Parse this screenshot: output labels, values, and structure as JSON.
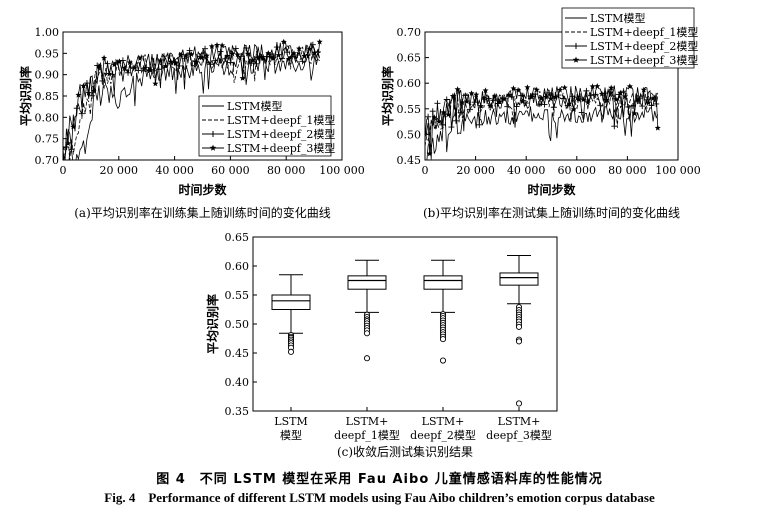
{
  "figure": {
    "caption_cn": "图 4　不同 LSTM 模型在采用 Fau Aibo 儿童情感语料库的性能情况",
    "caption_en_label": "Fig. 4",
    "caption_en_text": "Performance of different LSTM models using Fau Aibo children’s emotion corpus database"
  },
  "chart_data": [
    {
      "id": "a",
      "type": "line",
      "caption": "(a)平均识别率在训练集上随训练时间的变化曲线",
      "xlabel": "时间步数",
      "ylabel": "平均识别率",
      "xlim": [
        0,
        100000
      ],
      "ylim": [
        0.7,
        1.0
      ],
      "xticks": [
        0,
        20000,
        40000,
        60000,
        80000,
        100000
      ],
      "xtick_labels": [
        "0",
        "20 000",
        "40 000",
        "60 000",
        "80 000",
        "100 000"
      ],
      "yticks": [
        0.7,
        0.75,
        0.8,
        0.85,
        0.9,
        0.95,
        1.0
      ],
      "ytick_labels": [
        "0.70",
        "0.75",
        "0.80",
        "0.85",
        "0.90",
        "0.95",
        "1.00"
      ],
      "legend_position": "lower-right",
      "series": [
        {
          "name": "LSTM模型",
          "style": "solid",
          "marker": "none",
          "x": [
            0,
            3000,
            6000,
            9000,
            12000,
            16000,
            20000,
            25000,
            30000,
            40000,
            50000,
            60000,
            70000,
            80000,
            92000
          ],
          "y": [
            0.7,
            0.7,
            0.72,
            0.8,
            0.85,
            0.88,
            0.84,
            0.88,
            0.9,
            0.91,
            0.92,
            0.92,
            0.93,
            0.93,
            0.93
          ]
        },
        {
          "name": "LSTM+deepf_1模型",
          "style": "dashed",
          "marker": "none",
          "x": [
            0,
            3000,
            6000,
            9000,
            12000,
            16000,
            20000,
            25000,
            30000,
            40000,
            50000,
            60000,
            70000,
            80000,
            92000
          ],
          "y": [
            0.7,
            0.73,
            0.79,
            0.85,
            0.88,
            0.9,
            0.91,
            0.92,
            0.93,
            0.93,
            0.94,
            0.94,
            0.94,
            0.95,
            0.95
          ]
        },
        {
          "name": "LSTM+deepf_2模型",
          "style": "solid",
          "marker": "plus",
          "x": [
            0,
            3000,
            6000,
            9000,
            12000,
            16000,
            20000,
            25000,
            30000,
            40000,
            50000,
            60000,
            70000,
            80000,
            92000
          ],
          "y": [
            0.73,
            0.77,
            0.83,
            0.87,
            0.89,
            0.91,
            0.92,
            0.92,
            0.93,
            0.94,
            0.94,
            0.95,
            0.95,
            0.95,
            0.95
          ]
        },
        {
          "name": "LSTM+deepf_3模型",
          "style": "solid",
          "marker": "star",
          "x": [
            0,
            3000,
            6000,
            9000,
            12000,
            16000,
            20000,
            25000,
            30000,
            40000,
            50000,
            60000,
            70000,
            80000,
            92000
          ],
          "y": [
            0.74,
            0.79,
            0.85,
            0.88,
            0.9,
            0.92,
            0.92,
            0.93,
            0.93,
            0.94,
            0.95,
            0.95,
            0.95,
            0.96,
            0.96
          ]
        }
      ]
    },
    {
      "id": "b",
      "type": "line",
      "caption": "(b)平均识别率在测试集上随训练时间的变化曲线",
      "xlabel": "时间步数",
      "ylabel": "平均识别率",
      "xlim": [
        0,
        100000
      ],
      "ylim": [
        0.45,
        0.7
      ],
      "xticks": [
        0,
        20000,
        40000,
        60000,
        80000,
        100000
      ],
      "xtick_labels": [
        "0",
        "20 000",
        "40 000",
        "60 000",
        "80 000",
        "100 000"
      ],
      "yticks": [
        0.45,
        0.5,
        0.55,
        0.6,
        0.65,
        0.7
      ],
      "ytick_labels": [
        "0.45",
        "0.50",
        "0.55",
        "0.60",
        "0.65",
        "0.70"
      ],
      "legend_position": "top-right",
      "series": [
        {
          "name": "LSTM模型",
          "style": "solid",
          "marker": "none",
          "x": [
            0,
            5000,
            10000,
            20000,
            40000,
            60000,
            80000,
            92000
          ],
          "y": [
            0.46,
            0.5,
            0.53,
            0.53,
            0.54,
            0.54,
            0.54,
            0.54
          ]
        },
        {
          "name": "LSTM+deepf_1模型",
          "style": "dashed",
          "marker": "none",
          "x": [
            0,
            5000,
            10000,
            20000,
            40000,
            60000,
            80000,
            92000
          ],
          "y": [
            0.49,
            0.53,
            0.55,
            0.56,
            0.57,
            0.57,
            0.57,
            0.57
          ]
        },
        {
          "name": "LSTM+deepf_2模型",
          "style": "solid",
          "marker": "plus",
          "x": [
            0,
            5000,
            10000,
            20000,
            40000,
            60000,
            80000,
            92000
          ],
          "y": [
            0.5,
            0.54,
            0.56,
            0.57,
            0.57,
            0.57,
            0.57,
            0.57
          ]
        },
        {
          "name": "LSTM+deepf_3模型",
          "style": "solid",
          "marker": "star",
          "x": [
            0,
            5000,
            10000,
            20000,
            40000,
            60000,
            80000,
            92000
          ],
          "y": [
            0.51,
            0.54,
            0.56,
            0.57,
            0.58,
            0.58,
            0.58,
            0.58
          ]
        }
      ]
    },
    {
      "id": "c",
      "type": "box",
      "caption": "(c)收敛后测试集识别结果",
      "ylabel": "平均识别率",
      "ylim": [
        0.35,
        0.65
      ],
      "yticks": [
        0.35,
        0.4,
        0.45,
        0.5,
        0.55,
        0.6,
        0.65
      ],
      "ytick_labels": [
        "0.35",
        "0.40",
        "0.45",
        "0.50",
        "0.55",
        "0.60",
        "0.65"
      ],
      "categories": [
        {
          "line1": "LSTM",
          "line2": "模型"
        },
        {
          "line1": "LSTM+",
          "line2": "deepf_1模型"
        },
        {
          "line1": "LSTM+",
          "line2": "deepf_2模型"
        },
        {
          "line1": "LSTM+",
          "line2": "deepf_3模型"
        }
      ],
      "boxes": [
        {
          "whisker_low": 0.484,
          "q1": 0.525,
          "median": 0.54,
          "q3": 0.55,
          "whisker_high": 0.585,
          "outliers": [
            0.481,
            0.478,
            0.476,
            0.473,
            0.47,
            0.467,
            0.463,
            0.459,
            0.452
          ]
        },
        {
          "whisker_low": 0.52,
          "q1": 0.56,
          "median": 0.575,
          "q3": 0.583,
          "whisker_high": 0.61,
          "outliers": [
            0.516,
            0.512,
            0.508,
            0.505,
            0.501,
            0.497,
            0.493,
            0.489,
            0.484,
            0.441
          ]
        },
        {
          "whisker_low": 0.52,
          "q1": 0.56,
          "median": 0.575,
          "q3": 0.583,
          "whisker_high": 0.61,
          "outliers": [
            0.517,
            0.514,
            0.51,
            0.506,
            0.502,
            0.498,
            0.494,
            0.49,
            0.486,
            0.482,
            0.478,
            0.474,
            0.437
          ]
        },
        {
          "whisker_low": 0.535,
          "q1": 0.567,
          "median": 0.58,
          "q3": 0.588,
          "whisker_high": 0.618,
          "outliers": [
            0.529,
            0.524,
            0.52,
            0.516,
            0.512,
            0.508,
            0.504,
            0.499,
            0.495,
            0.473,
            0.47,
            0.363
          ]
        }
      ]
    }
  ]
}
